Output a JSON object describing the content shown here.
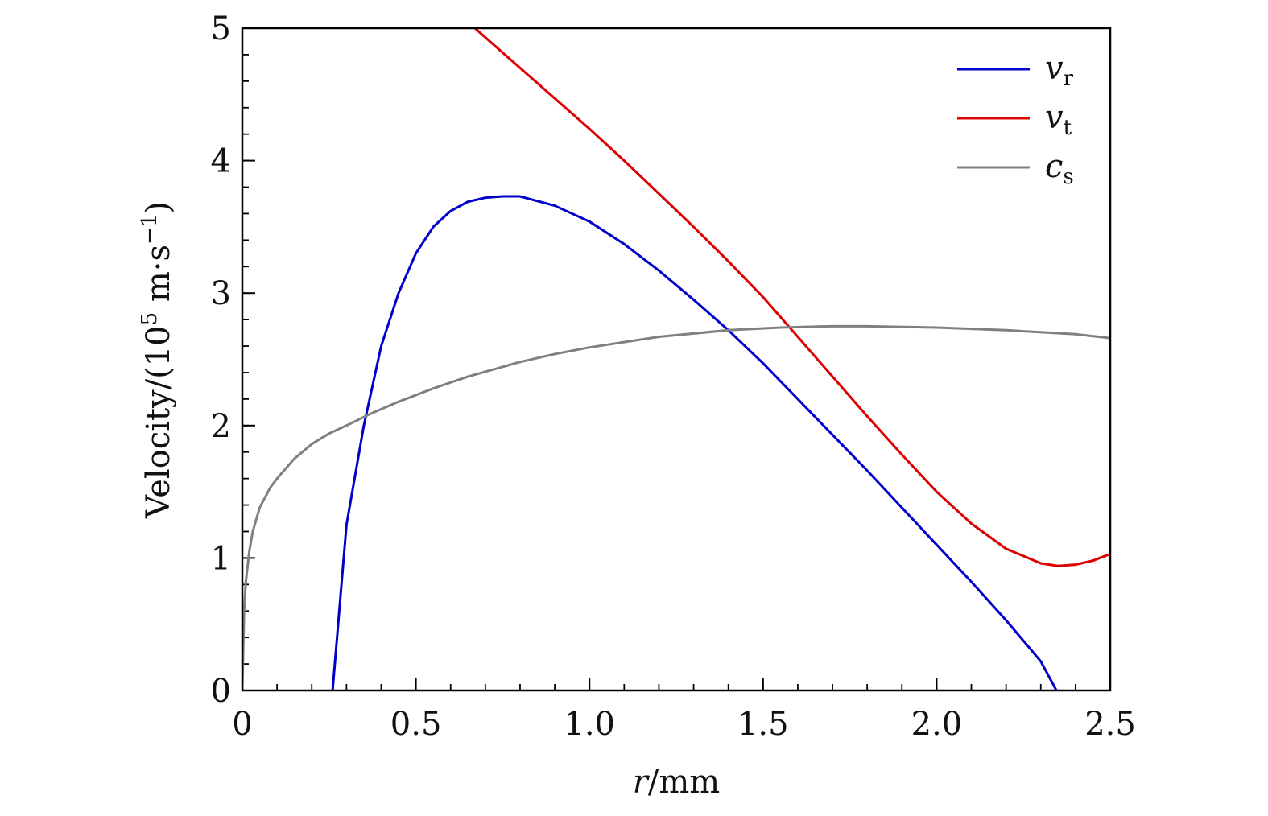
{
  "chart_data": {
    "type": "line",
    "xlabel_var": "r",
    "xlabel_unit": "/mm",
    "ylabel_main": "Velocity/(10",
    "ylabel_exp": "5",
    "ylabel_unit": " m·s",
    "ylabel_unit_exp": "−1",
    "ylabel_close": ")",
    "xlim": [
      0,
      2.5
    ],
    "ylim": [
      0,
      5
    ],
    "xticks": [
      "0",
      "0.5",
      "1.0",
      "1.5",
      "2.0",
      "2.5"
    ],
    "yticks": [
      "0",
      "1",
      "2",
      "3",
      "4",
      "5"
    ],
    "legend_position": "top-right",
    "series": [
      {
        "name": "v",
        "sub": "r",
        "color": "#0000cc",
        "x": [
          0.26,
          0.3,
          0.35,
          0.4,
          0.45,
          0.5,
          0.55,
          0.6,
          0.65,
          0.7,
          0.75,
          0.8,
          0.9,
          1.0,
          1.1,
          1.2,
          1.3,
          1.4,
          1.5,
          1.6,
          1.7,
          1.8,
          1.9,
          2.0,
          2.1,
          2.2,
          2.3,
          2.345
        ],
        "y": [
          0.0,
          1.25,
          2.0,
          2.6,
          3.0,
          3.3,
          3.5,
          3.62,
          3.69,
          3.72,
          3.73,
          3.73,
          3.66,
          3.54,
          3.37,
          3.17,
          2.95,
          2.72,
          2.47,
          2.2,
          1.93,
          1.66,
          1.38,
          1.1,
          0.82,
          0.53,
          0.22,
          0.0
        ]
      },
      {
        "name": "v",
        "sub": "t",
        "color": "#dd0000",
        "x": [
          0.67,
          0.7,
          0.8,
          0.9,
          1.0,
          1.1,
          1.2,
          1.3,
          1.4,
          1.5,
          1.6,
          1.7,
          1.8,
          1.9,
          2.0,
          2.1,
          2.2,
          2.3,
          2.35,
          2.4,
          2.45,
          2.5
        ],
        "y": [
          5.0,
          4.93,
          4.7,
          4.47,
          4.24,
          4.0,
          3.75,
          3.5,
          3.24,
          2.97,
          2.67,
          2.37,
          2.07,
          1.78,
          1.5,
          1.26,
          1.07,
          0.96,
          0.94,
          0.95,
          0.98,
          1.03
        ]
      },
      {
        "name": "c",
        "sub": "s",
        "color": "#808080",
        "x": [
          0.0,
          0.005,
          0.01,
          0.02,
          0.03,
          0.05,
          0.08,
          0.1,
          0.15,
          0.2,
          0.25,
          0.3,
          0.37,
          0.45,
          0.55,
          0.65,
          0.8,
          0.9,
          1.0,
          1.2,
          1.4,
          1.55,
          1.7,
          1.8,
          2.0,
          2.2,
          2.4,
          2.5
        ],
        "y": [
          0.0,
          0.6,
          0.82,
          1.05,
          1.2,
          1.38,
          1.53,
          1.6,
          1.75,
          1.86,
          1.94,
          2.0,
          2.09,
          2.18,
          2.28,
          2.37,
          2.48,
          2.54,
          2.59,
          2.67,
          2.72,
          2.74,
          2.75,
          2.75,
          2.74,
          2.72,
          2.69,
          2.66
        ]
      }
    ]
  }
}
